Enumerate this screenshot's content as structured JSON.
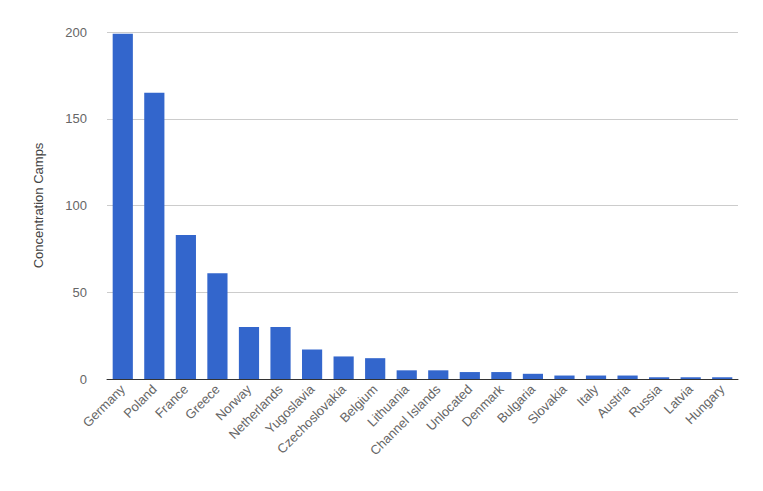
{
  "chart_data": {
    "type": "bar",
    "y_label": "Concentration Camps",
    "categories": [
      "Germany",
      "Poland",
      "France",
      "Greece",
      "Norway",
      "Netherlands",
      "Yugoslavia",
      "Czechoslovakia",
      "Belgium",
      "Lithuania",
      "Channel Islands",
      "Unlocated",
      "Denmark",
      "Bulgaria",
      "Slovakia",
      "Italy",
      "Austria",
      "Russia",
      "Latvia",
      "Hungary"
    ],
    "values": [
      199,
      165,
      83,
      61,
      30,
      30,
      17,
      13,
      12,
      5,
      5,
      4,
      4,
      3,
      2,
      2,
      2,
      1,
      1,
      1
    ],
    "color": "#3366cc",
    "ylim": [
      0,
      200
    ],
    "yticks": [
      0,
      50,
      100,
      150,
      200
    ],
    "grid": true
  }
}
